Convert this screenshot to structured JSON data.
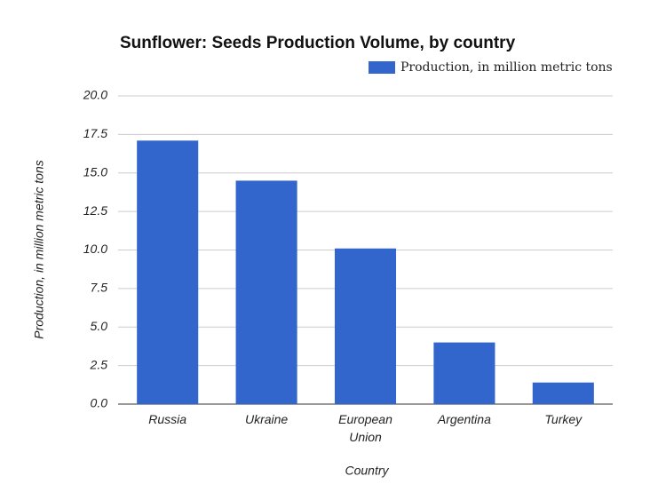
{
  "chart_data": {
    "type": "bar",
    "title": "Sunflower: Seeds Production Volume, by country",
    "x_label": "Country",
    "y_label": "Production, in million metric tons",
    "categories": [
      "Russia",
      "Ukraine",
      "European Union",
      "Argentina",
      "Turkey"
    ],
    "series": [
      {
        "name": "Production, in million metric tons",
        "color": "#3366cc",
        "values": [
          17.1,
          14.5,
          10.1,
          4.0,
          1.4
        ]
      }
    ],
    "ylim": [
      0,
      20
    ],
    "yticks": [
      {
        "value": 0,
        "label": "0.0"
      },
      2.5,
      {
        "value": 5,
        "label": "5.0"
      },
      7.5,
      {
        "value": 10,
        "label": "10.0"
      },
      12.5,
      {
        "value": 15,
        "label": "15.0"
      },
      17.5,
      {
        "value": 20,
        "label": "20.0"
      }
    ],
    "grid": true,
    "legend": "top-right"
  }
}
